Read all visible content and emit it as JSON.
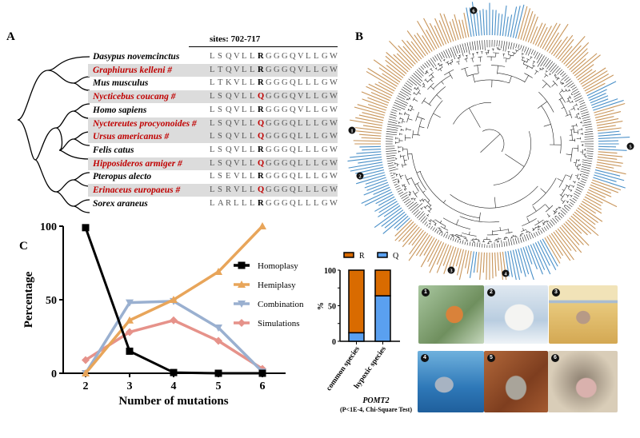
{
  "panels": {
    "a": "A",
    "b": "B",
    "c": "C"
  },
  "alignment": {
    "header": "sites: 702-717",
    "rows": [
      {
        "species": "Dasypus novemcinctus",
        "hypoxic": false,
        "seq": "LSQVLLRGGGQVLLGW"
      },
      {
        "species": "Graphiurus kelleni #",
        "hypoxic": true,
        "seq": "LTQVLLRGGGQVLLGW"
      },
      {
        "species": "Mus musculus",
        "hypoxic": false,
        "seq": "LTKVLLRGGGQLLLGW"
      },
      {
        "species": "Nycticebus coucang #",
        "hypoxic": true,
        "seq": "LSQVLLQGGGQVLLGW"
      },
      {
        "species": "Homo sapiens",
        "hypoxic": false,
        "seq": "LSQVLLRGGGQVLLGW"
      },
      {
        "species": "Nyctereutes procyonoides #",
        "hypoxic": true,
        "seq": "LSQVLLQGGGQLLLGW"
      },
      {
        "species": "Ursus americanus #",
        "hypoxic": true,
        "seq": "LSQVLLQGGGQLLLGW"
      },
      {
        "species": "Felis catus",
        "hypoxic": false,
        "seq": "LSQVLLRGGGQLLLGW"
      },
      {
        "species": "Hipposideros armiger #",
        "hypoxic": true,
        "seq": "LSQVLLQGGGQLLLGW"
      },
      {
        "species": "Pteropus alecto",
        "hypoxic": false,
        "seq": "LSEVLLRGGGQLLLGW"
      },
      {
        "species": "Erinaceus europaeus #",
        "hypoxic": true,
        "seq": "LSRVLLQGGGQLLLGW"
      },
      {
        "species": "Sorex araneus",
        "hypoxic": false,
        "seq": "LARLLLRGGGQLLLGW"
      }
    ],
    "highlight_site_index": 6
  },
  "tree": {
    "colors": {
      "R": "#c8955a",
      "Q": "#4a90c8"
    },
    "markers": [
      "1",
      "2",
      "3",
      "4",
      "5",
      "6"
    ]
  },
  "chart_data": [
    {
      "type": "line",
      "xlabel": "Number of mutations",
      "ylabel": "Percentage",
      "x": [
        2,
        3,
        4,
        5,
        6
      ],
      "xticks": [
        "2",
        "3",
        "4",
        "5",
        "6"
      ],
      "yticks": [
        "0",
        "50",
        "100"
      ],
      "ylim": [
        0,
        100
      ],
      "legend_position": "right",
      "series": [
        {
          "name": "Homoplasy",
          "color": "#000000",
          "marker": "square",
          "values": [
            99,
            15,
            0.5,
            0,
            0
          ]
        },
        {
          "name": "Hemiplasy",
          "color": "#e8a55a",
          "marker": "triangle-up",
          "values": [
            0,
            36,
            50,
            69,
            100
          ]
        },
        {
          "name": "Combination",
          "color": "#9ab0d0",
          "marker": "triangle-down",
          "values": [
            0,
            48,
            49,
            31,
            1
          ]
        },
        {
          "name": "Simulations",
          "color": "#e6928a",
          "marker": "diamond",
          "values": [
            9,
            28,
            36,
            22,
            3
          ]
        }
      ]
    },
    {
      "type": "bar",
      "stacked": true,
      "categories": [
        "common species",
        "hypoxic species"
      ],
      "ylabel": "%",
      "yticks": [
        "0",
        "50",
        "100"
      ],
      "ylim": [
        0,
        100
      ],
      "legend_position": "top",
      "series": [
        {
          "name": "Q",
          "color": "#5aa0f0",
          "values": [
            12,
            64
          ]
        },
        {
          "name": "R",
          "color": "#d96b00",
          "values": [
            88,
            36
          ]
        }
      ],
      "title": "POMT2",
      "subtitle": "(P<1E-4, Chi-Square Test)"
    }
  ],
  "photos": [
    {
      "num": "1",
      "animal": "slow loris"
    },
    {
      "num": "2",
      "animal": "polar bear"
    },
    {
      "num": "3",
      "animal": "Tibetan antelope"
    },
    {
      "num": "4",
      "animal": "dolphin"
    },
    {
      "num": "5",
      "animal": "hedgehog"
    },
    {
      "num": "6",
      "animal": "naked mole-rat"
    }
  ]
}
